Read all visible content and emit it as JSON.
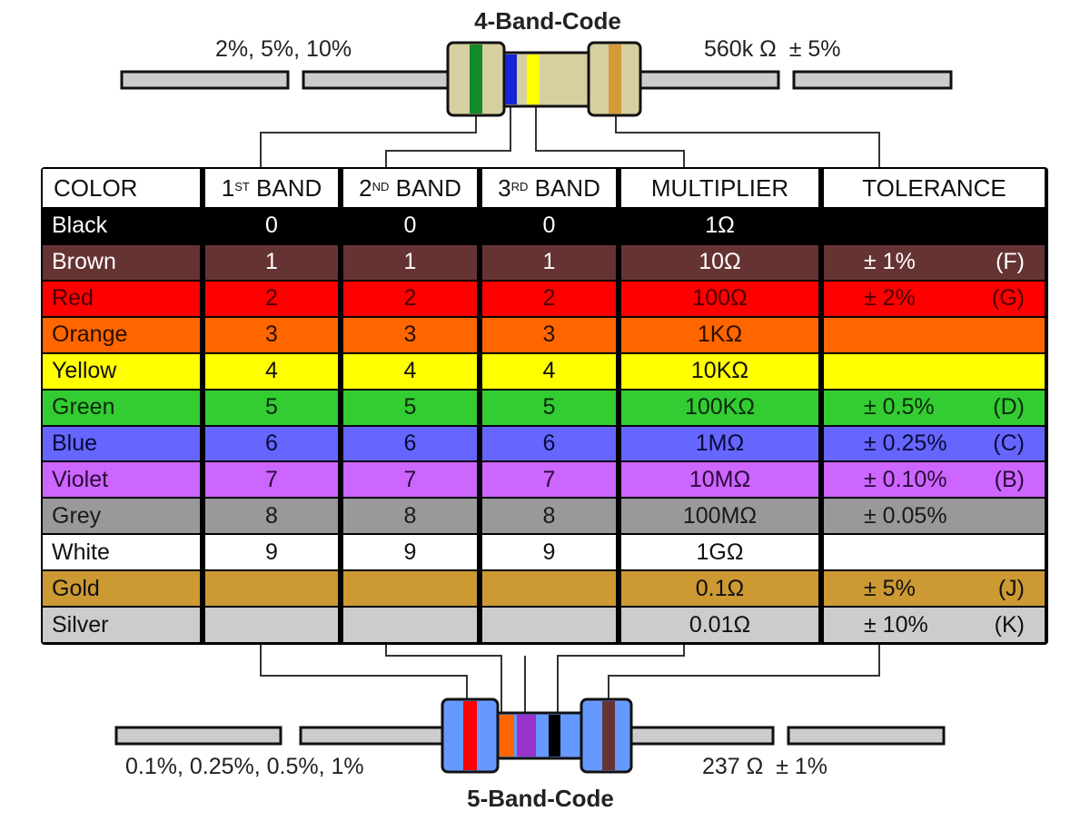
{
  "four_band": {
    "title": "4-Band-Code",
    "tolerance_range": "2%, 5%, 10%",
    "example_value": "560k Ω  ± 5%",
    "bands": [
      "#128a2a",
      "#1426d6",
      "#ffff00",
      "#d49a3a"
    ],
    "body_color": "#d6d0a0"
  },
  "five_band": {
    "title": "5-Band-Code",
    "tolerance_range": "0.1%, 0.25%, 0.5%, 1%",
    "example_value": "237 Ω  ± 1%",
    "bands": [
      "#ff0000",
      "#ff6600",
      "#9933cc",
      "#000000",
      "#663333"
    ],
    "body_color": "#6699ff"
  },
  "table": {
    "headers": {
      "color": "COLOR",
      "band1_num": "1",
      "band1_sup": "ST",
      "band1_word": " BAND",
      "band2_num": "2",
      "band2_sup": "ND",
      "band2_word": " BAND",
      "band3_num": "3",
      "band3_sup": "RD",
      "band3_word": " BAND",
      "multiplier": "MULTIPLIER",
      "tolerance": "TOLERANCE"
    },
    "rows": [
      {
        "name": "Black",
        "bg": "#000000",
        "fg": "#ffffff",
        "b1": "0",
        "b2": "0",
        "b3": "0",
        "mult": "1Ω",
        "tol": "",
        "code": ""
      },
      {
        "name": "Brown",
        "bg": "#663333",
        "fg": "#ffffff",
        "b1": "1",
        "b2": "1",
        "b3": "1",
        "mult": "10Ω",
        "tol": "± 1%",
        "code": "(F)"
      },
      {
        "name": "Red",
        "bg": "#ff0000",
        "fg": "#4a0000",
        "b1": "2",
        "b2": "2",
        "b3": "2",
        "mult": "100Ω",
        "tol": "± 2%",
        "code": "(G)"
      },
      {
        "name": "Orange",
        "bg": "#ff6600",
        "fg": "#2a1000",
        "b1": "3",
        "b2": "3",
        "b3": "3",
        "mult": "1KΩ",
        "tol": "",
        "code": ""
      },
      {
        "name": "Yellow",
        "bg": "#ffff00",
        "fg": "#111111",
        "b1": "4",
        "b2": "4",
        "b3": "4",
        "mult": "10KΩ",
        "tol": "",
        "code": ""
      },
      {
        "name": "Green",
        "bg": "#33cc33",
        "fg": "#0a2a0a",
        "b1": "5",
        "b2": "5",
        "b3": "5",
        "mult": "100KΩ",
        "tol": "± 0.5%",
        "code": "(D)"
      },
      {
        "name": "Blue",
        "bg": "#6666ff",
        "fg": "#0a0a3a",
        "b1": "6",
        "b2": "6",
        "b3": "6",
        "mult": "1MΩ",
        "tol": "± 0.25%",
        "code": "(C)"
      },
      {
        "name": "Violet",
        "bg": "#cc66ff",
        "fg": "#2a0a3a",
        "b1": "7",
        "b2": "7",
        "b3": "7",
        "mult": "10MΩ",
        "tol": "± 0.10%",
        "code": "(B)"
      },
      {
        "name": "Grey",
        "bg": "#999999",
        "fg": "#1a1a1a",
        "b1": "8",
        "b2": "8",
        "b3": "8",
        "mult": "100MΩ",
        "tol": "± 0.05%",
        "code": ""
      },
      {
        "name": "White",
        "bg": "#ffffff",
        "fg": "#111111",
        "b1": "9",
        "b2": "9",
        "b3": "9",
        "mult": "1GΩ",
        "tol": "",
        "code": ""
      },
      {
        "name": "Gold",
        "bg": "#cc9933",
        "fg": "#111111",
        "b1": "",
        "b2": "",
        "b3": "",
        "mult": "0.1Ω",
        "tol": "± 5%",
        "code": "(J)"
      },
      {
        "name": "Silver",
        "bg": "#cccccc",
        "fg": "#111111",
        "b1": "",
        "b2": "",
        "b3": "",
        "mult": "0.01Ω",
        "tol": "± 10%",
        "code": "(K)"
      }
    ]
  }
}
